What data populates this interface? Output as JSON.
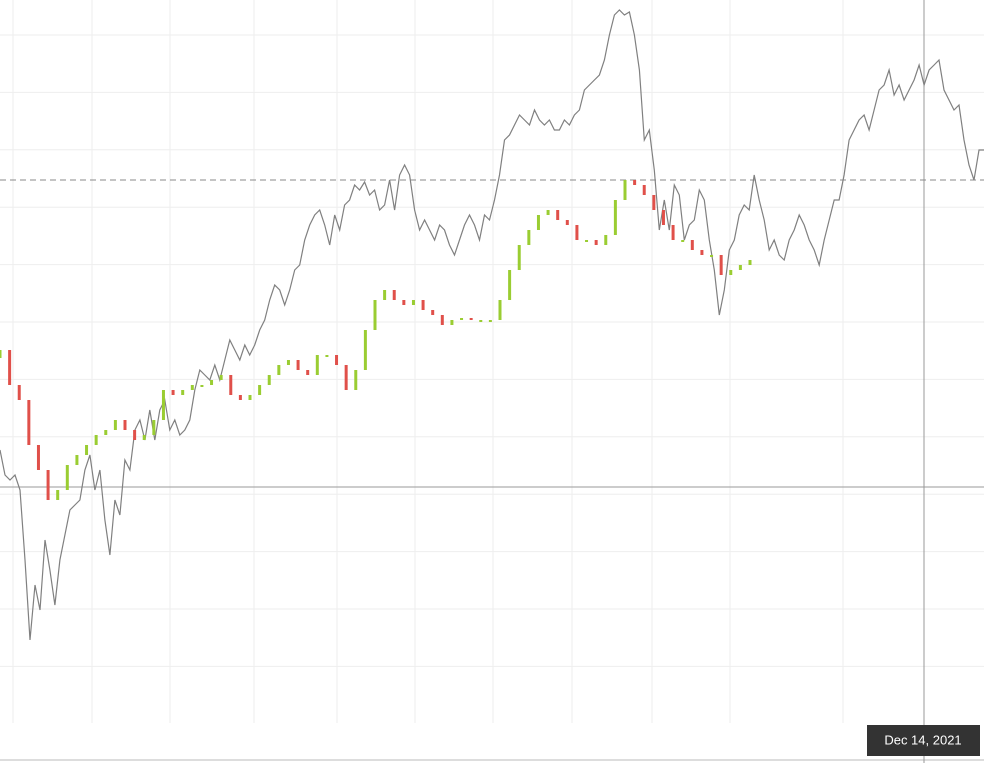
{
  "chart_data": {
    "ylim": [
      0,
      763
    ],
    "reference_value": 583,
    "crosshair_value": 276,
    "crosshair_label": "Dec 14, 2021",
    "layers": [
      {
        "type": "line",
        "color": "#808080",
        "values": [
          313,
          288,
          283,
          288,
          273,
          203,
          123,
          178,
          153,
          223,
          193,
          158,
          203,
          228,
          253,
          258,
          263,
          293,
          308,
          273,
          293,
          243,
          208,
          263,
          248,
          303,
          293,
          333,
          343,
          323,
          353,
          323,
          353,
          363,
          333,
          343,
          328,
          333,
          343,
          373,
          393,
          388,
          383,
          398,
          383,
          403,
          423,
          413,
          403,
          418,
          408,
          418,
          433,
          443,
          463,
          478,
          473,
          458,
          473,
          493,
          498,
          523,
          538,
          548,
          553,
          538,
          518,
          548,
          533,
          558,
          563,
          578,
          573,
          581,
          568,
          573,
          553,
          558,
          583,
          553,
          588,
          598,
          588,
          553,
          533,
          543,
          533,
          523,
          538,
          533,
          518,
          508,
          523,
          538,
          548,
          538,
          523,
          548,
          543,
          563,
          588,
          623,
          628,
          638,
          648,
          643,
          638,
          653,
          643,
          638,
          643,
          633,
          633,
          643,
          638,
          648,
          653,
          673,
          678,
          683,
          688,
          703,
          728,
          748,
          753,
          748,
          751,
          728,
          693,
          623,
          633,
          593,
          533,
          563,
          533,
          578,
          568,
          523,
          538,
          543,
          573,
          563,
          523,
          493,
          448,
          473,
          513,
          523,
          548,
          558,
          553,
          588,
          563,
          543,
          513,
          523,
          508,
          503,
          523,
          533,
          548,
          538,
          523,
          513,
          498,
          523,
          543,
          563,
          563,
          588,
          623,
          633,
          643,
          648,
          633,
          653,
          673,
          678,
          693,
          668,
          678,
          663,
          673,
          683,
          698,
          678,
          693,
          698,
          703,
          673,
          663,
          653,
          658,
          623,
          598,
          583,
          613,
          613
        ]
      },
      {
        "type": "candlestick",
        "up_color": "#9acd32",
        "down_color": "#e0504a",
        "open": [
          405,
          413,
          378,
          363,
          318,
          293,
          263,
          273,
          298,
          308,
          318,
          328,
          333,
          343,
          333,
          323,
          328,
          343,
          373,
          368,
          373,
          378,
          378,
          383,
          388,
          368,
          363,
          368,
          378,
          388,
          398,
          403,
          393,
          388,
          408,
          408,
          398,
          373,
          393,
          433,
          463,
          473,
          463,
          458,
          463,
          453,
          448,
          438,
          443,
          445,
          443,
          443,
          443,
          463,
          493,
          518,
          533,
          548,
          553,
          543,
          538,
          523,
          523,
          518,
          528,
          563,
          583,
          578,
          568,
          553,
          538,
          523,
          523,
          513,
          508,
          508,
          488,
          493,
          498
        ],
        "close": [
          413,
          378,
          363,
          318,
          293,
          263,
          273,
          298,
          308,
          318,
          328,
          333,
          343,
          333,
          323,
          328,
          343,
          373,
          368,
          373,
          378,
          378,
          383,
          388,
          368,
          363,
          368,
          378,
          388,
          398,
          403,
          393,
          388,
          408,
          408,
          398,
          373,
          393,
          433,
          463,
          473,
          463,
          458,
          463,
          453,
          448,
          438,
          443,
          445,
          443,
          443,
          443,
          463,
          493,
          518,
          533,
          548,
          553,
          543,
          538,
          523,
          523,
          518,
          528,
          563,
          583,
          578,
          568,
          553,
          538,
          523,
          523,
          513,
          508,
          508,
          488,
          493,
          498,
          503
        ]
      }
    ]
  }
}
